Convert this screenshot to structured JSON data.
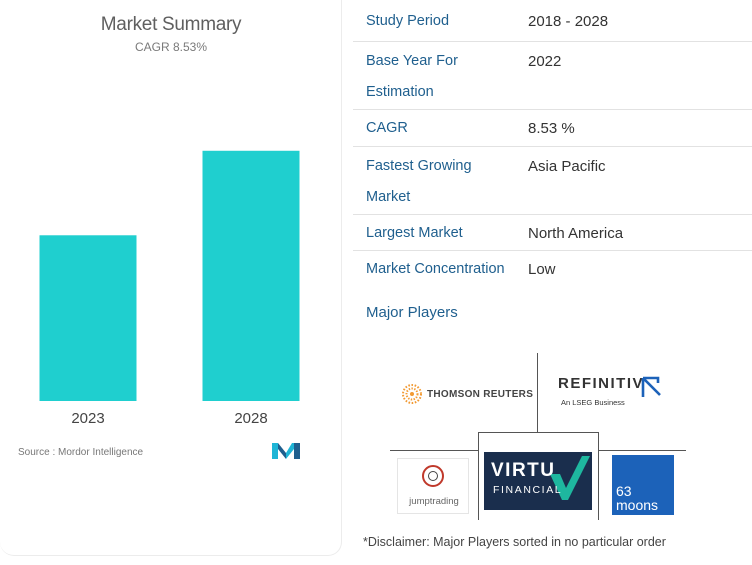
{
  "summary": {
    "title": "Market Summary",
    "cagr_text": "CAGR 8.53%",
    "source": "Source : Mordor Intelligence"
  },
  "chart_data": {
    "type": "bar",
    "categories": [
      "2023",
      "2028"
    ],
    "values": [
      1.0,
      1.51
    ],
    "bar_color": "#1fcfcf",
    "ylim": [
      0,
      1.75
    ],
    "grid": false,
    "title": "Market Summary",
    "subtitle": "CAGR 8.53%"
  },
  "info": {
    "rows": [
      {
        "label": "Study Period",
        "value": "2018 - 2028"
      },
      {
        "label_lines": [
          "Base Year For",
          "Estimation"
        ],
        "value": "2022"
      },
      {
        "label": "CAGR",
        "value": "8.53 %"
      },
      {
        "label_lines": [
          "Fastest Growing",
          "Market"
        ],
        "value": "Asia Pacific"
      },
      {
        "label": "Largest Market",
        "value": "North America"
      },
      {
        "label": "Market Concentration",
        "value": "Low"
      }
    ]
  },
  "players": {
    "title": "Major Players",
    "thomson_reuters": "THOMSON REUTERS",
    "refinitiv": "REFINITIV",
    "refinitiv_sub": "An LSEG Business",
    "jump": "jumptrading",
    "virtu": "VIRTU",
    "virtu_sub": "FINANCIAL",
    "moons_num": "63",
    "moons_word": "moons",
    "disclaimer": "*Disclaimer: Major Players sorted in no particular order"
  },
  "colors": {
    "accent": "#1f5f8e",
    "bar": "#1fcfcf",
    "virtu_bg": "#1a2e4d",
    "virtu_check": "#1fc7a8",
    "moons_bg": "#1c62b9",
    "refinitiv_mark": "#1c62b9",
    "jump_red": "#c0392b"
  }
}
